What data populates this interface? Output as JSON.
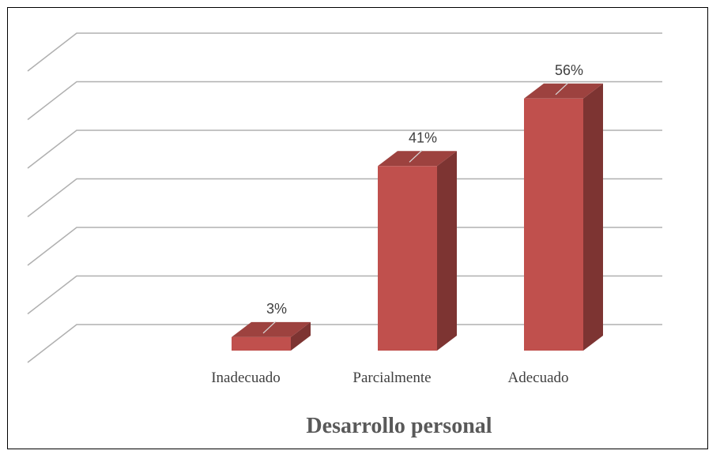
{
  "chart_data": {
    "type": "bar3d",
    "title": "Desarrollo personal",
    "categories": [
      "Inadecuado",
      "Parcialmente",
      "Adecuado"
    ],
    "values": [
      3,
      41,
      56
    ],
    "value_labels": [
      "3%",
      "41%",
      "56%"
    ],
    "color": "#c0504d",
    "ylim": [
      0,
      60
    ],
    "yticks": [
      0,
      10,
      20,
      30,
      40,
      50,
      60
    ],
    "grid": true
  }
}
